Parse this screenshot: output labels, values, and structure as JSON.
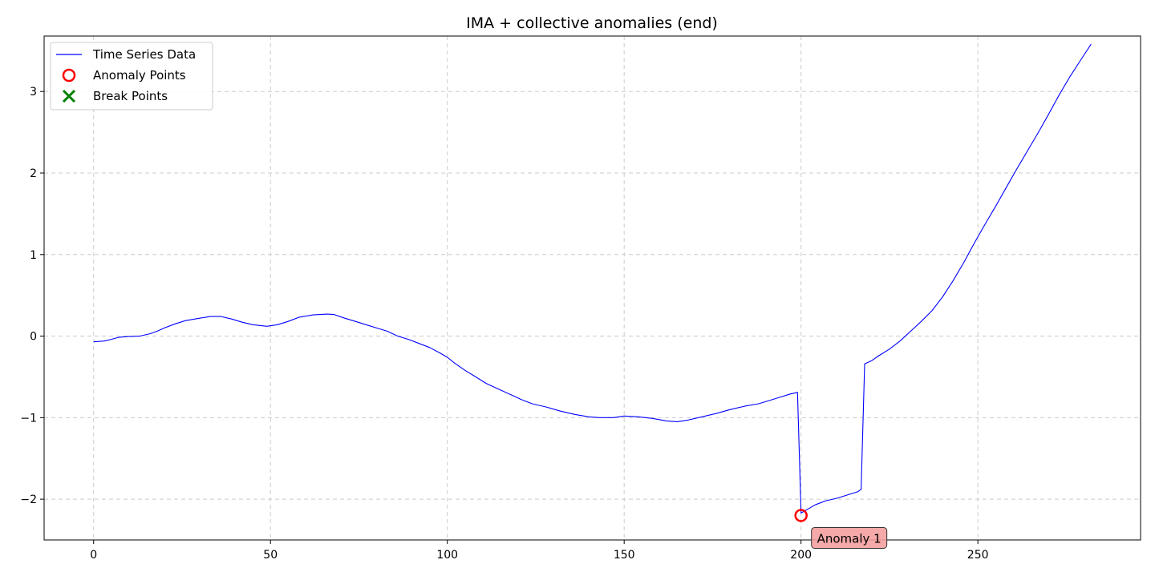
{
  "chart_data": {
    "type": "line",
    "title": "IMA + collective anomalies (end)",
    "xlabel": "",
    "ylabel": "",
    "xlim": [
      -14,
      296
    ],
    "ylim": [
      -2.5,
      3.68
    ],
    "x_ticks": [
      0,
      50,
      100,
      150,
      200,
      250
    ],
    "y_ticks": [
      -2,
      -1,
      0,
      1,
      2,
      3
    ],
    "x_tick_labels": [
      "0",
      "50",
      "100",
      "150",
      "200",
      "250"
    ],
    "y_tick_labels": [
      "−2",
      "−1",
      "0",
      "1",
      "2",
      "3"
    ],
    "grid": true,
    "legend": {
      "position": "top-left",
      "entries": [
        {
          "label": "Time Series Data",
          "marker": "line",
          "color": "#0000ff"
        },
        {
          "label": "Anomaly Points",
          "marker": "circle",
          "color": "#ff0000"
        },
        {
          "label": "Break Points",
          "marker": "x",
          "color": "#008000"
        }
      ]
    },
    "series": [
      {
        "name": "Time Series Data",
        "color": "#0000ff",
        "points": [
          [
            0,
            -0.07
          ],
          [
            3,
            -0.06
          ],
          [
            5,
            -0.04
          ],
          [
            7,
            -0.015
          ],
          [
            10,
            -0.005
          ],
          [
            13,
            0.0
          ],
          [
            16,
            0.03
          ],
          [
            18,
            0.06
          ],
          [
            20,
            0.1
          ],
          [
            23,
            0.15
          ],
          [
            26,
            0.19
          ],
          [
            30,
            0.22
          ],
          [
            33,
            0.24
          ],
          [
            36,
            0.24
          ],
          [
            39,
            0.21
          ],
          [
            42,
            0.17
          ],
          [
            45,
            0.14
          ],
          [
            49,
            0.12
          ],
          [
            52,
            0.14
          ],
          [
            55,
            0.18
          ],
          [
            58,
            0.23
          ],
          [
            62,
            0.26
          ],
          [
            66,
            0.27
          ],
          [
            68,
            0.265
          ],
          [
            71,
            0.22
          ],
          [
            74,
            0.18
          ],
          [
            77,
            0.14
          ],
          [
            80,
            0.1
          ],
          [
            83,
            0.06
          ],
          [
            86,
            0.0
          ],
          [
            89,
            -0.04
          ],
          [
            92,
            -0.09
          ],
          [
            95,
            -0.14
          ],
          [
            98,
            -0.21
          ],
          [
            100,
            -0.26
          ],
          [
            102,
            -0.33
          ],
          [
            105,
            -0.42
          ],
          [
            108,
            -0.5
          ],
          [
            111,
            -0.58
          ],
          [
            115,
            -0.66
          ],
          [
            118,
            -0.72
          ],
          [
            121,
            -0.78
          ],
          [
            124,
            -0.83
          ],
          [
            128,
            -0.87
          ],
          [
            132,
            -0.92
          ],
          [
            136,
            -0.96
          ],
          [
            140,
            -0.99
          ],
          [
            143,
            -1.0
          ],
          [
            147,
            -1.0
          ],
          [
            150,
            -0.98
          ],
          [
            154,
            -0.99
          ],
          [
            158,
            -1.01
          ],
          [
            162,
            -1.04
          ],
          [
            165,
            -1.05
          ],
          [
            168,
            -1.03
          ],
          [
            172,
            -0.99
          ],
          [
            176,
            -0.95
          ],
          [
            180,
            -0.9
          ],
          [
            184,
            -0.86
          ],
          [
            188,
            -0.83
          ],
          [
            191,
            -0.79
          ],
          [
            194,
            -0.75
          ],
          [
            197,
            -0.71
          ],
          [
            199,
            -0.69
          ],
          [
            200,
            -2.17
          ],
          [
            202,
            -2.12
          ],
          [
            204,
            -2.07
          ],
          [
            207,
            -2.02
          ],
          [
            210,
            -1.99
          ],
          [
            213,
            -1.95
          ],
          [
            216,
            -1.91
          ],
          [
            217,
            -1.88
          ],
          [
            218,
            -0.34
          ],
          [
            220,
            -0.3
          ],
          [
            222,
            -0.24
          ],
          [
            225,
            -0.16
          ],
          [
            228,
            -0.06
          ],
          [
            231,
            0.06
          ],
          [
            234,
            0.18
          ],
          [
            237,
            0.31
          ],
          [
            240,
            0.48
          ],
          [
            243,
            0.68
          ],
          [
            246,
            0.9
          ],
          [
            249,
            1.14
          ],
          [
            252,
            1.37
          ],
          [
            255,
            1.59
          ],
          [
            258,
            1.82
          ],
          [
            261,
            2.05
          ],
          [
            264,
            2.27
          ],
          [
            267,
            2.49
          ],
          [
            270,
            2.72
          ],
          [
            273,
            2.96
          ],
          [
            276,
            3.18
          ],
          [
            279,
            3.38
          ],
          [
            282,
            3.58
          ]
        ]
      }
    ],
    "anomaly_points": [
      {
        "x": 200,
        "y": -2.2,
        "color": "#ff0000"
      }
    ],
    "annotations": [
      {
        "text": "Anomaly 1",
        "x": 200,
        "y": -2.2,
        "bg_color": "#f4a0a0"
      }
    ]
  }
}
